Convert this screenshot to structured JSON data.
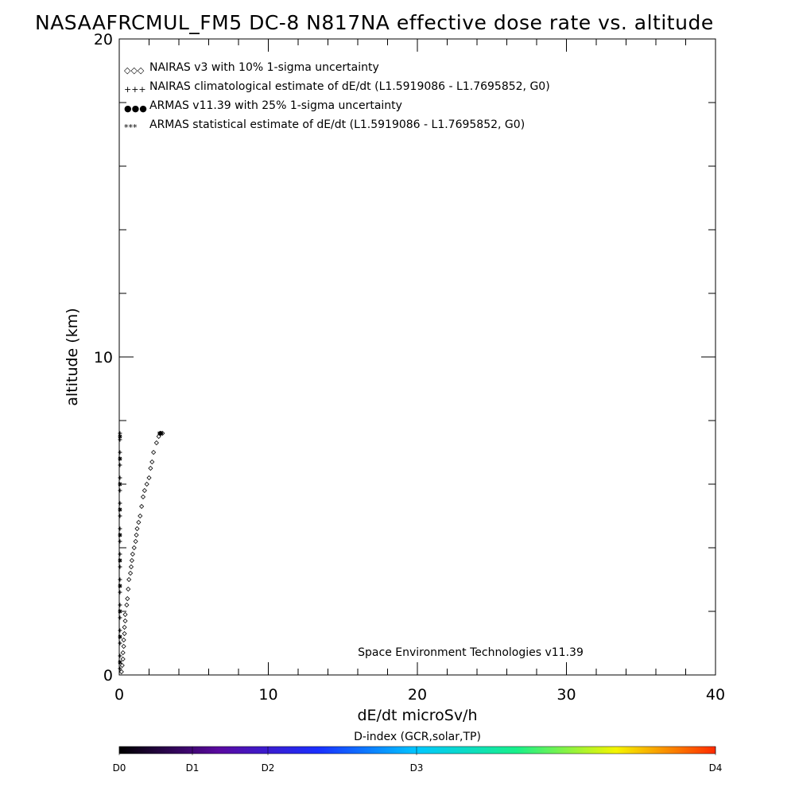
{
  "chart_data": {
    "type": "scatter",
    "title": "NASAAFRCMUL_FM5 DC-8   N817NA effective dose rate vs. altitude",
    "xlabel": "dE/dt microSv/h",
    "ylabel": "altitude (km)",
    "xlim": [
      0,
      40
    ],
    "ylim": [
      0,
      20
    ],
    "x_major_ticks": [
      0,
      10,
      20,
      30,
      40
    ],
    "y_major_ticks": [
      0,
      10,
      20
    ],
    "x_tick_labels": [
      "0",
      "10",
      "20",
      "30",
      "40"
    ],
    "y_tick_labels": [
      "0",
      "10",
      "20"
    ],
    "legend_placement": "top-left",
    "grid": false,
    "legend": [
      {
        "marker": "◇◇◇",
        "label": "NAIRAS v3 with 10% 1-sigma uncertainty",
        "color": "#000000"
      },
      {
        "marker": "+++",
        "label": "NAIRAS climatological estimate of dE/dt (L1.5919086 - L1.7695852, G0)",
        "color": "#000000"
      },
      {
        "marker": "●●●",
        "label": "ARMAS v11.39 with 25% 1-sigma uncertainty",
        "color": "#1f3fd0"
      },
      {
        "marker": "***",
        "label": "ARMAS statistical estimate of dE/dt (L1.5919086 - L1.7695852, G0)",
        "color": "#000000"
      }
    ],
    "series": [
      {
        "name": "NAIRAS v3 with 10% 1-sigma uncertainty",
        "marker": "diamond",
        "color": "#000000",
        "points": [
          [
            0.15,
            0.1
          ],
          [
            0.2,
            0.3
          ],
          [
            0.25,
            0.5
          ],
          [
            0.25,
            0.7
          ],
          [
            0.3,
            0.9
          ],
          [
            0.3,
            1.1
          ],
          [
            0.35,
            1.3
          ],
          [
            0.35,
            1.5
          ],
          [
            0.4,
            1.7
          ],
          [
            0.4,
            1.9
          ],
          [
            0.5,
            2.2
          ],
          [
            0.55,
            2.4
          ],
          [
            0.6,
            2.7
          ],
          [
            0.65,
            3.0
          ],
          [
            0.75,
            3.2
          ],
          [
            0.8,
            3.4
          ],
          [
            0.85,
            3.6
          ],
          [
            0.9,
            3.8
          ],
          [
            1.0,
            4.0
          ],
          [
            1.1,
            4.2
          ],
          [
            1.15,
            4.4
          ],
          [
            1.2,
            4.6
          ],
          [
            1.3,
            4.8
          ],
          [
            1.4,
            5.0
          ],
          [
            1.5,
            5.3
          ],
          [
            1.6,
            5.6
          ],
          [
            1.7,
            5.8
          ],
          [
            1.85,
            6.0
          ],
          [
            2.0,
            6.2
          ],
          [
            2.1,
            6.5
          ],
          [
            2.2,
            6.7
          ],
          [
            2.3,
            7.0
          ],
          [
            2.5,
            7.3
          ],
          [
            2.65,
            7.5
          ],
          [
            2.75,
            7.6
          ],
          [
            2.8,
            7.6
          ],
          [
            2.9,
            7.6
          ]
        ]
      },
      {
        "name": "NAIRAS climatological estimate of dE/dt (L1.5919086 - L1.7695852, G0)",
        "marker": "plus",
        "color": "#000000",
        "points": [
          [
            0.05,
            0.2
          ],
          [
            0.05,
            0.6
          ],
          [
            0.05,
            1.0
          ],
          [
            0.05,
            1.4
          ],
          [
            0.05,
            1.8
          ],
          [
            0.05,
            2.2
          ],
          [
            0.05,
            2.6
          ],
          [
            0.05,
            3.0
          ],
          [
            0.05,
            3.4
          ],
          [
            0.05,
            3.8
          ],
          [
            0.05,
            4.2
          ],
          [
            0.05,
            4.6
          ],
          [
            0.05,
            5.0
          ],
          [
            0.05,
            5.4
          ],
          [
            0.05,
            5.8
          ],
          [
            0.05,
            6.2
          ],
          [
            0.05,
            6.6
          ],
          [
            0.05,
            7.0
          ],
          [
            0.05,
            7.4
          ],
          [
            0.05,
            7.6
          ]
        ]
      },
      {
        "name": "ARMAS statistical estimate of dE/dt (L1.5919086 - L1.7695852, G0)",
        "marker": "asterisk",
        "color": "#000000",
        "points": [
          [
            0.05,
            0.4
          ],
          [
            0.05,
            1.2
          ],
          [
            0.05,
            2.0
          ],
          [
            0.05,
            2.8
          ],
          [
            0.05,
            3.6
          ],
          [
            0.05,
            4.4
          ],
          [
            0.05,
            5.2
          ],
          [
            0.05,
            6.0
          ],
          [
            0.05,
            6.8
          ],
          [
            0.05,
            7.5
          ],
          [
            2.7,
            7.6
          ],
          [
            2.8,
            7.6
          ]
        ]
      }
    ],
    "annotation": "Space Environment Technologies v11.39",
    "colorbar": {
      "title": "D-index (GCR,solar,TP)",
      "labels": [
        "D0",
        "D1",
        "D2",
        "D3",
        "D4"
      ],
      "label_values": [
        0,
        1,
        2,
        3,
        4
      ],
      "stops": [
        "#000000",
        "#5a0aa0",
        "#1a2fff",
        "#00c8ff",
        "#19f08a",
        "#f5f500",
        "#ff2a00"
      ]
    }
  }
}
